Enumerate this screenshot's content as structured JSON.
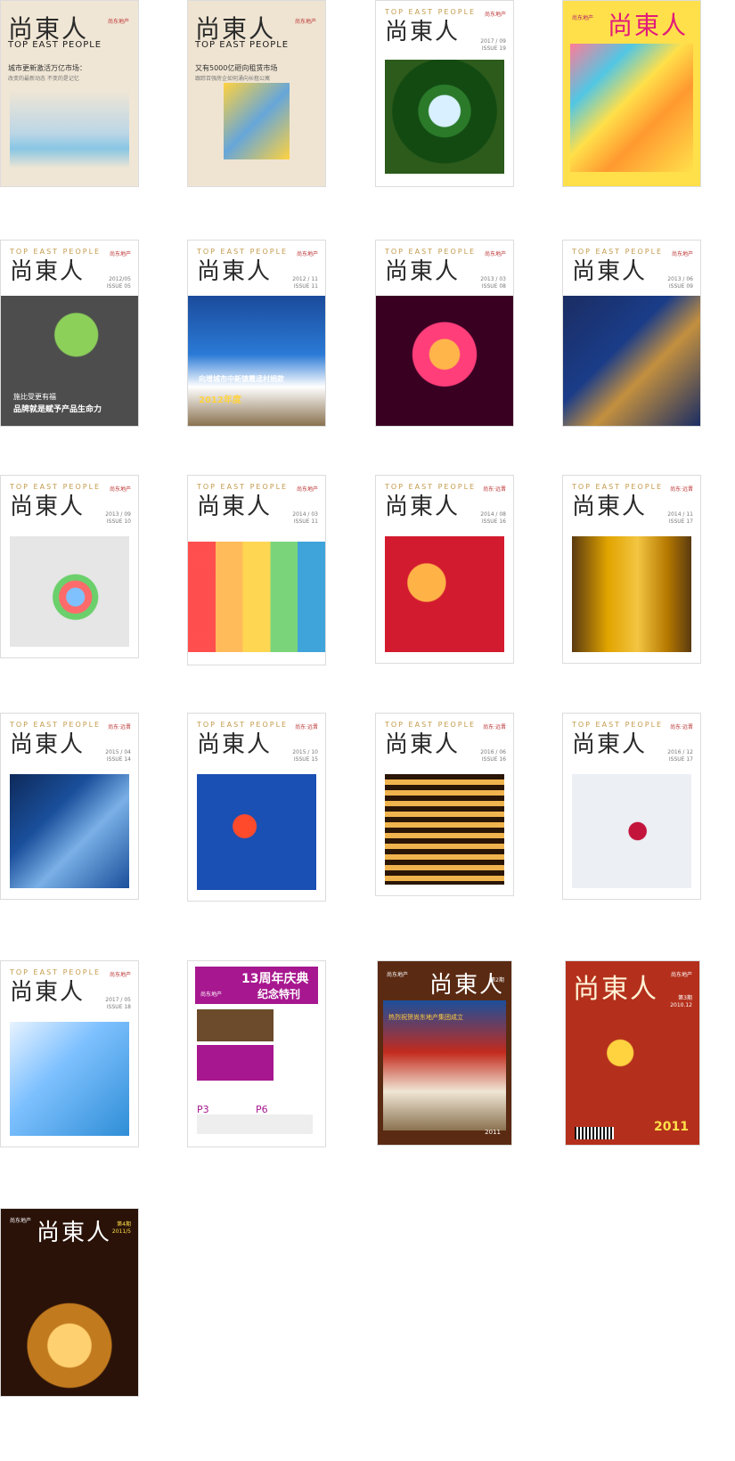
{
  "covers": [
    {
      "logo_cn": "尚東人",
      "logo_en": "TOP EAST PEOPLE",
      "line1": "城市更新激活万亿市场：",
      "line2": "改变的最新动态    不变的是记忆",
      "issue": "",
      "brand": "尚东地产",
      "palette": {
        "bg": "#f0e6d5",
        "accent": "#2a9ad6"
      }
    },
    {
      "logo_cn": "尚東人",
      "logo_en": "TOP EAST PEOPLE",
      "line1": "又有5000亿砸向租赁市场",
      "line2": "跟踪百强房企如何涌向长租公寓",
      "issue": "",
      "brand": "尚东地产",
      "palette": {
        "bg": "#efe4d2",
        "accent": "#f1c40f"
      }
    },
    {
      "logo_en": "TOP EAST PEOPLE",
      "logo_cn": "尚東人",
      "issue": "2017 / 09",
      "issue2": "ISSUE 19",
      "brand": "尚东地产",
      "palette": {
        "accent": "#2d8a2d"
      }
    },
    {
      "logo_cn": "尚東人",
      "issue": "",
      "brand": "尚东地产",
      "palette": {
        "bg": "#ffe04a",
        "accent": "#e11b7a"
      }
    },
    {
      "logo_en": "TOP EAST PEOPLE",
      "logo_cn": "尚東人",
      "issue": "2012/05",
      "issue2": "ISSUE 05",
      "brand": "尚东地产",
      "caption1": "施比受更有福",
      "caption2": "品牌就是赋予产品生命力",
      "palette": {
        "accent": "#7fbf3f"
      }
    },
    {
      "logo_en": "TOP EAST PEOPLE",
      "logo_cn": "尚東人",
      "issue": "2012 / 11",
      "issue2": "ISSUE 11",
      "brand": "尚东地产",
      "caption1": "向增城市中新镇霞迳村捐款",
      "caption2": "2012年度",
      "palette": {
        "accent": "#2f6fb7"
      }
    },
    {
      "logo_en": "TOP EAST PEOPLE",
      "logo_cn": "尚東人",
      "issue": "2013 / 03",
      "issue2": "ISSUE 08",
      "brand": "尚东地产",
      "palette": {
        "accent": "#ff6b1a"
      }
    },
    {
      "logo_en": "TOP EAST PEOPLE",
      "logo_cn": "尚東人",
      "issue": "2013 / 06",
      "issue2": "ISSUE 09",
      "brand": "尚东地产",
      "palette": {
        "accent": "#1b2d63"
      }
    },
    {
      "logo_en": "TOP EAST PEOPLE",
      "logo_cn": "尚東人",
      "issue": "2013 / 09",
      "issue2": "ISSUE 10",
      "brand": "尚东地产",
      "palette": {
        "accent": "#6bd06b"
      }
    },
    {
      "logo_en": "TOP EAST PEOPLE",
      "logo_cn": "尚東人",
      "issue": "2014 / 03",
      "issue2": "ISSUE 11",
      "brand": "尚东地产",
      "palette": {
        "accent": "#e02b2b"
      }
    },
    {
      "logo_en": "TOP EAST PEOPLE",
      "logo_cn": "尚東人",
      "issue": "2014 / 08",
      "issue2": "ISSUE 16",
      "brand": "尚东·远晋",
      "palette": {
        "accent": "#d31b2f"
      }
    },
    {
      "logo_en": "TOP EAST PEOPLE",
      "logo_cn": "尚東人",
      "issue": "2014 / 11",
      "issue2": "ISSUE 17",
      "brand": "尚东·远晋",
      "palette": {
        "accent": "#e1a400"
      }
    },
    {
      "logo_en": "TOP EAST PEOPLE",
      "logo_cn": "尚東人",
      "issue": "2015 / 04",
      "issue2": "ISSUE 14",
      "brand": "尚东·远晋",
      "palette": {
        "accent": "#1a4f9b"
      }
    },
    {
      "logo_en": "TOP EAST PEOPLE",
      "logo_cn": "尚東人",
      "issue": "2015 / 10",
      "issue2": "ISSUE 15",
      "brand": "尚东·远晋",
      "palette": {
        "accent": "#1a4fb3"
      }
    },
    {
      "logo_en": "TOP EAST PEOPLE",
      "logo_cn": "尚東人",
      "issue": "2016 / 06",
      "issue2": "ISSUE 16",
      "brand": "尚东·远晋",
      "palette": {
        "accent": "#f0b44e"
      }
    },
    {
      "logo_en": "TOP EAST PEOPLE",
      "logo_cn": "尚東人",
      "issue": "2016 / 12",
      "issue2": "ISSUE 17",
      "brand": "尚东·远晋",
      "palette": {
        "accent": "#c3143b"
      }
    },
    {
      "logo_en": "TOP EAST PEOPLE",
      "logo_cn": "尚東人",
      "issue": "2017 / 05",
      "issue2": "ISSUE 18",
      "brand": "尚东地产",
      "palette": {
        "accent": "#2f8ed6"
      }
    },
    {
      "banner_title": "13周年庆典",
      "banner_sub": "纪念特刊",
      "brand": "尚东地产",
      "pages": [
        "P3",
        "P6"
      ],
      "palette": {
        "accent": "#a7178f"
      }
    },
    {
      "logo_cn": "尚東人",
      "issue": "第2期",
      "caption1": "热烈祝贺尚东地产集团成立",
      "brand": "尚东地产",
      "year": "2011",
      "palette": {
        "accent": "#c32b1e"
      }
    },
    {
      "logo_cn": "尚東人",
      "issue": "第3期",
      "issue2": "2010.12",
      "brand": "尚东地产",
      "year": "2011",
      "palette": {
        "accent": "#b4301c"
      }
    },
    {
      "logo_cn": "尚東人",
      "issue": "第4期",
      "issue2": "2011/5",
      "brand": "尚东地产",
      "palette": {
        "accent": "#c27a1e"
      }
    }
  ]
}
